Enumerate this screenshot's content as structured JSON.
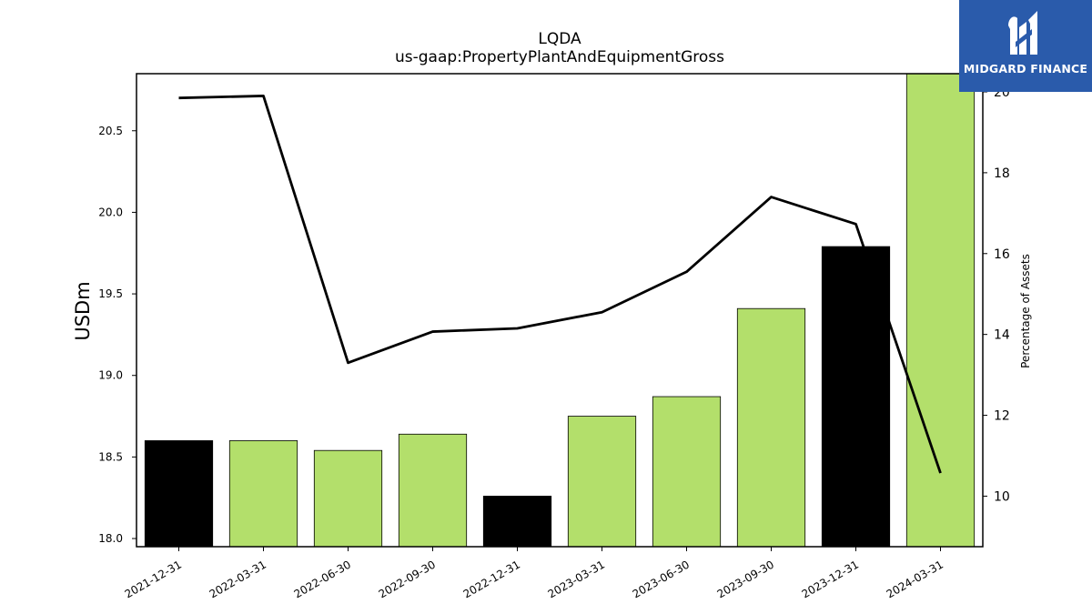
{
  "brand": {
    "name": "MIDGARD FINANCE",
    "logo_icon": "midgard-finance-logo-icon",
    "background": "#2a5bab"
  },
  "chart_data": {
    "type": "bar",
    "title": "LQDA",
    "subtitle": "us-gaap:PropertyPlantAndEquipmentGross",
    "ylabel": "USDm",
    "y2label": "Percentage of Assets",
    "categories": [
      "2021-12-31",
      "2022-03-31",
      "2022-06-30",
      "2022-09-30",
      "2022-12-31",
      "2023-03-31",
      "2023-06-30",
      "2023-09-30",
      "2023-12-31",
      "2024-03-31"
    ],
    "series": [
      {
        "kind": "bar",
        "axis": "left",
        "values": [
          18.6,
          18.6,
          18.54,
          18.64,
          18.26,
          18.75,
          18.87,
          19.41,
          19.79,
          20.85
        ],
        "colors": [
          "#000000",
          "#b3df6b",
          "#b3df6b",
          "#b3df6b",
          "#000000",
          "#b3df6b",
          "#b3df6b",
          "#b3df6b",
          "#000000",
          "#b3df6b"
        ]
      },
      {
        "kind": "line",
        "axis": "right",
        "color": "#000000",
        "values": [
          19.85,
          19.9,
          13.3,
          14.07,
          14.15,
          14.55,
          15.55,
          17.4,
          16.73,
          10.57
        ]
      }
    ],
    "ylim": [
      17.95,
      20.85
    ],
    "y2lim": [
      8.75,
      20.45
    ],
    "yticks": [
      "18.0",
      "18.5",
      "19.0",
      "19.5",
      "20.0",
      "20.5"
    ],
    "y2ticks": [
      "10",
      "12",
      "14",
      "16",
      "18",
      "20"
    ],
    "grid": false
  }
}
